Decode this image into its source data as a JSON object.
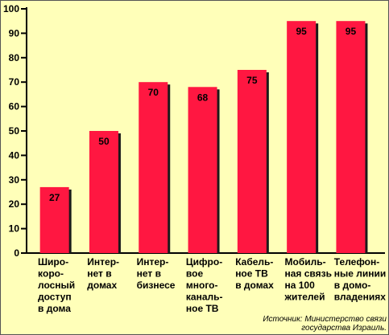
{
  "chart_data": {
    "type": "bar",
    "title": "",
    "xlabel": "",
    "ylabel": "",
    "ylim": [
      0,
      100
    ],
    "yticks": [
      0,
      10,
      20,
      30,
      40,
      50,
      60,
      70,
      80,
      90,
      100
    ],
    "grid": false,
    "categories": [
      [
        "Широ-",
        "кopo-",
        "лосный",
        "доступ",
        "в дома"
      ],
      [
        "Интер-",
        "нет в",
        "домах"
      ],
      [
        "Интер-",
        "нет в",
        "бизнесе"
      ],
      [
        "Цифро-",
        "вое",
        "много-",
        "каналь-",
        "ное ТВ"
      ],
      [
        "Кабель-",
        "ное ТВ",
        "в домах"
      ],
      [
        "Мобиль-",
        "ная связь",
        "на 100",
        "жителей"
      ],
      [
        "Телефон-",
        "ные линии",
        "в домо-",
        "владениях"
      ]
    ],
    "values": [
      27,
      50,
      70,
      68,
      75,
      95,
      95
    ],
    "colors": {
      "bar": "#ff1741",
      "shadow": "#1a1a1a",
      "background": "#ffffb9",
      "axis": "#000000"
    },
    "source_lines": [
      "Источник: Министерство связи",
      "государства Израиль."
    ]
  }
}
